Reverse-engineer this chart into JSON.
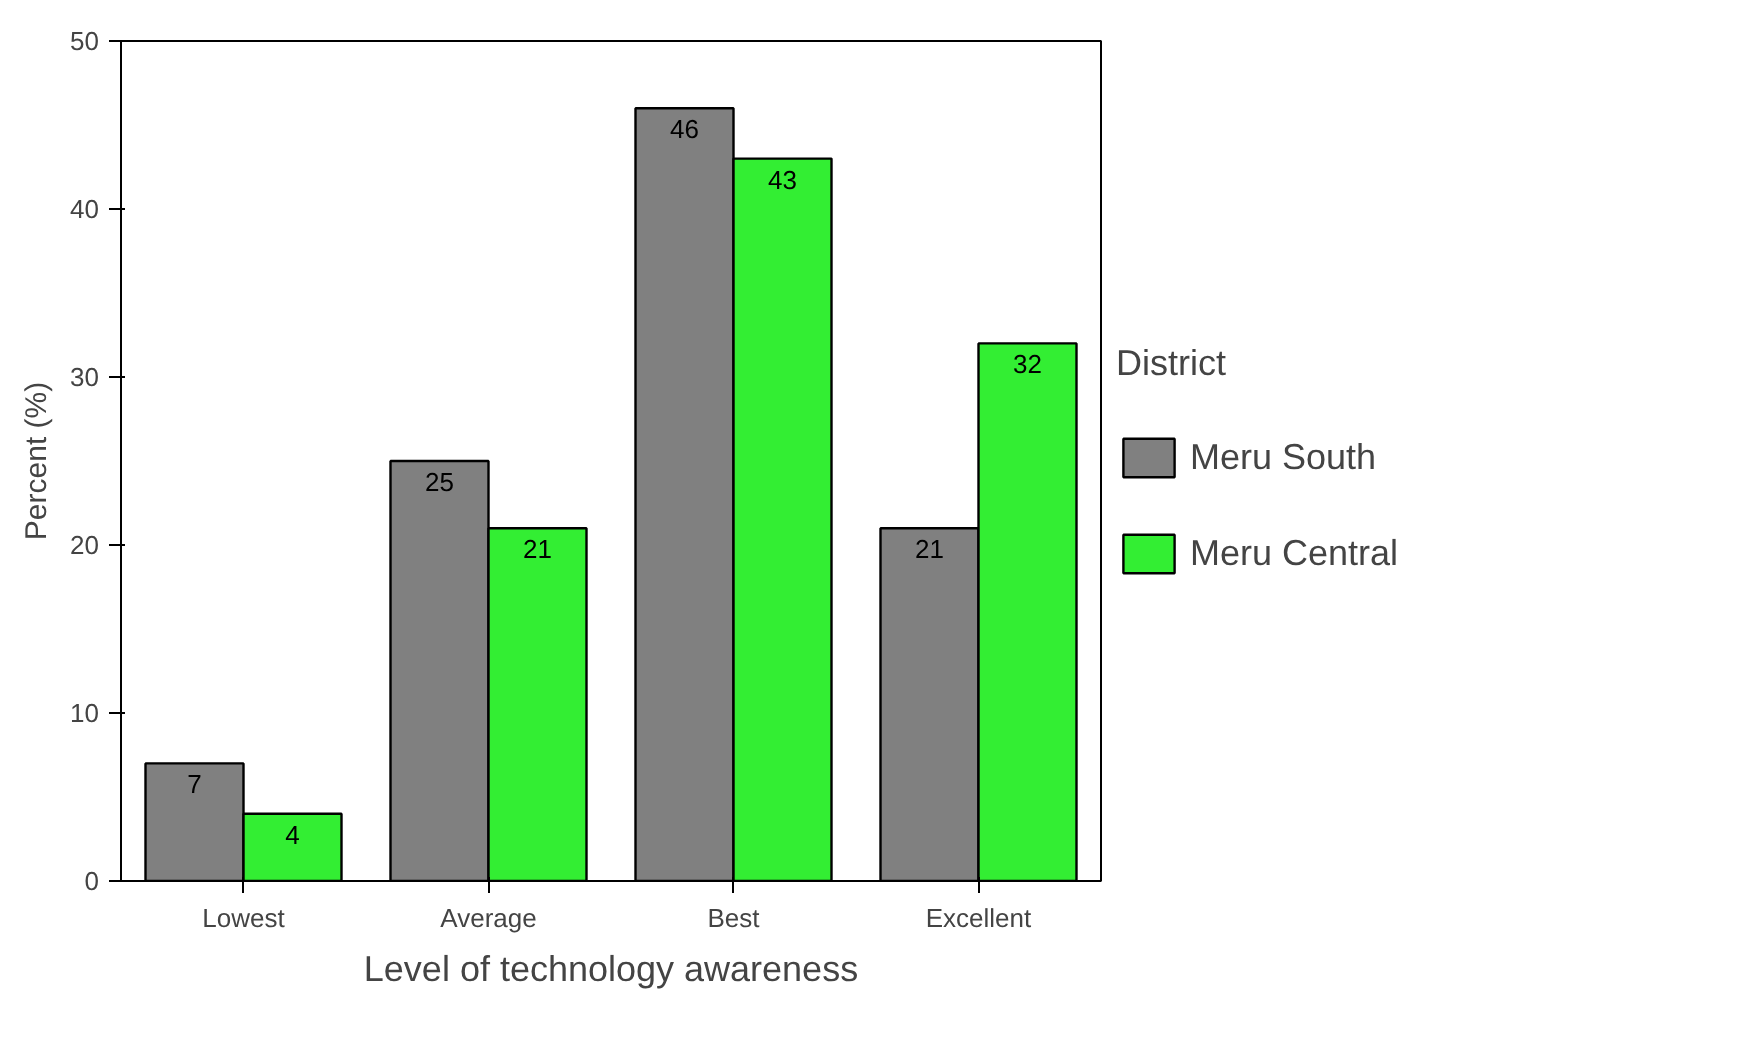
{
  "chart_data": {
    "type": "bar",
    "xlabel": "Level of technology awareness",
    "ylabel": "Percent (%)",
    "legend_title": "District",
    "categories": [
      "Lowest",
      "Average",
      "Best",
      "Excellent"
    ],
    "series": [
      {
        "name": "Meru South",
        "color": "#808080",
        "values": [
          7,
          25,
          46,
          21
        ]
      },
      {
        "name": "Meru Central",
        "color": "#33ee33",
        "values": [
          4,
          21,
          43,
          32
        ]
      }
    ],
    "ylim": [
      0,
      50
    ],
    "yticks": [
      0,
      10,
      20,
      30,
      40,
      50
    ],
    "data_labels": true,
    "legend": "right",
    "grid": false
  }
}
